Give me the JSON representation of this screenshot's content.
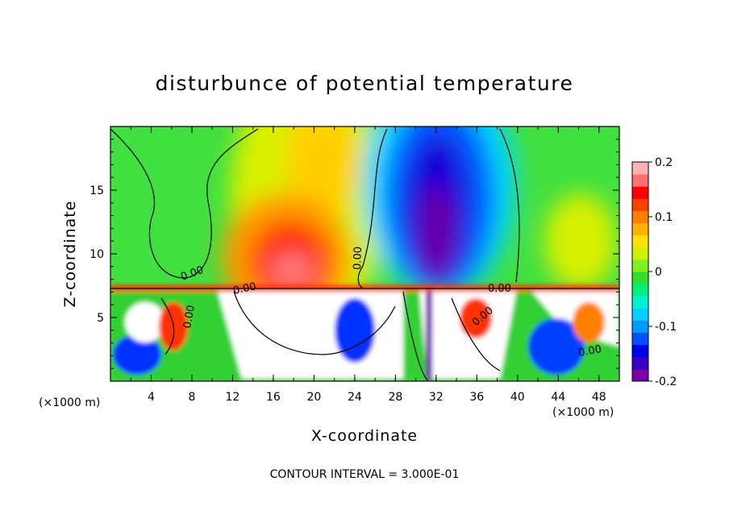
{
  "chart_data": {
    "type": "heatmap",
    "title": "disturbunce of potential temperature",
    "xlabel": "X-coordinate",
    "ylabel": "Z-coordinate",
    "x_unit_label": "(×1000 m)",
    "x_unit_label_right": "(×1000 m)",
    "xlim": [
      0,
      50
    ],
    "ylim": [
      0,
      20
    ],
    "x_ticks": [
      4,
      8,
      12,
      16,
      20,
      24,
      28,
      32,
      36,
      40,
      44,
      48
    ],
    "y_ticks": [
      5,
      10,
      15
    ],
    "x_tick_labels": [
      "4",
      "8",
      "12",
      "16",
      "20",
      "24",
      "28",
      "32",
      "36",
      "40",
      "44",
      "48"
    ],
    "y_tick_labels": [
      "5",
      "10",
      "15"
    ],
    "colorbar": {
      "range": [
        -0.2,
        0.2
      ],
      "tick_values": [
        -0.2,
        -0.1,
        0,
        0.1,
        0.2
      ],
      "tick_labels": [
        "-0.2",
        "-0.1",
        "0",
        "0.1",
        "0.2"
      ],
      "colors": [
        "#7a00a8",
        "#3a00c8",
        "#0000e8",
        "#0050ff",
        "#0098ff",
        "#00d0ff",
        "#00f0d0",
        "#00f080",
        "#30e030",
        "#80f020",
        "#d0f000",
        "#ffe000",
        "#ffb000",
        "#ff8000",
        "#ff4000",
        "#ff0000",
        "#ff7070",
        "#ffb0b0"
      ]
    },
    "contour_labels": [
      "0.00",
      "0.00",
      "0.00",
      "0.00",
      "0.00",
      "0.00",
      "0.00"
    ],
    "footer": "CONTOUR INTERVAL = 3.000E-01"
  }
}
